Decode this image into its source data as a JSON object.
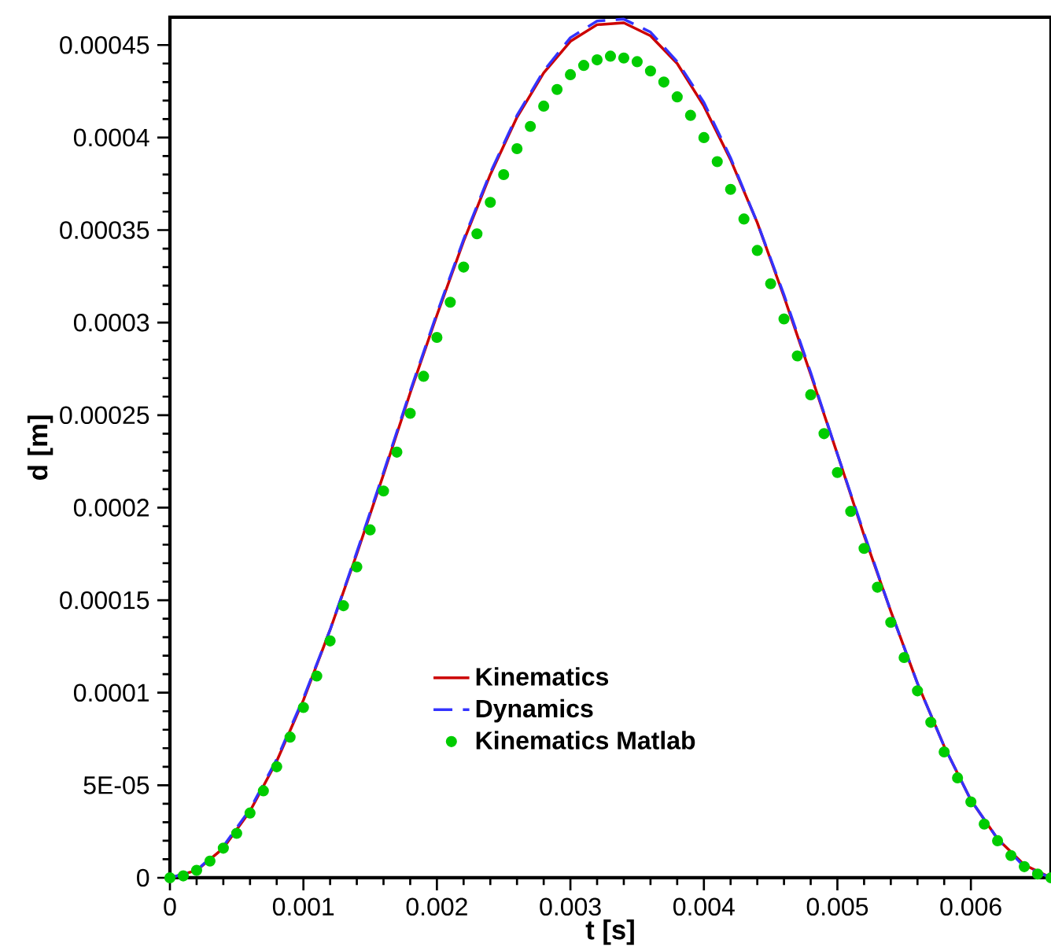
{
  "chart_data": {
    "type": "line",
    "xlabel": "t [s]",
    "ylabel": "d [m]",
    "xlim": [
      0,
      0.0066
    ],
    "ylim": [
      0,
      0.000465
    ],
    "xticks": [
      0,
      0.001,
      0.002,
      0.003,
      0.004,
      0.005,
      0.006
    ],
    "yticks": [
      0,
      {
        "value": 5e-05,
        "label": "5E-05"
      },
      0.0001,
      0.00015,
      0.0002,
      0.00025,
      0.0003,
      0.00035,
      0.0004,
      0.00045
    ],
    "grid": false,
    "legend": "bottom",
    "series": [
      {
        "name": "Kinematics",
        "color": "#cc0000",
        "line_style": "solid",
        "marker": "none",
        "x": [
          0,
          0.0002,
          0.0004,
          0.0006,
          0.0008,
          0.001,
          0.0012,
          0.0014,
          0.0016,
          0.0018,
          0.002,
          0.0022,
          0.0024,
          0.0026,
          0.0028,
          0.003,
          0.0032,
          0.0034,
          0.0036,
          0.0038,
          0.004,
          0.0042,
          0.0044,
          0.0046,
          0.0048,
          0.005,
          0.0052,
          0.0054,
          0.0056,
          0.0058,
          0.006,
          0.0062,
          0.0064,
          0.0066
        ],
        "values": [
          0,
          4e-06,
          1.6e-05,
          3.6e-05,
          6.3e-05,
          9.6e-05,
          0.000134,
          0.000175,
          0.000218,
          0.000262,
          0.000304,
          0.000344,
          0.00038,
          0.000411,
          0.000435,
          0.000452,
          0.000461,
          0.000462,
          0.000455,
          0.00044,
          0.000417,
          0.000388,
          0.000354,
          0.000314,
          0.000272,
          0.000229,
          0.000185,
          0.000144,
          0.000105,
          7.1e-05,
          4.2e-05,
          2.1e-05,
          7e-06,
          0
        ]
      },
      {
        "name": "Dynamics",
        "color": "#3333ff",
        "line_style": "dashed",
        "marker": "none",
        "x": [
          0,
          0.0002,
          0.0004,
          0.0006,
          0.0008,
          0.001,
          0.0012,
          0.0014,
          0.0016,
          0.0018,
          0.002,
          0.0022,
          0.0024,
          0.0026,
          0.0028,
          0.003,
          0.0032,
          0.0034,
          0.0036,
          0.0038,
          0.004,
          0.0042,
          0.0044,
          0.0046,
          0.0048,
          0.005,
          0.0052,
          0.0054,
          0.0056,
          0.0058,
          0.006,
          0.0062,
          0.0064,
          0.0066
        ],
        "values": [
          0,
          4e-06,
          1.7e-05,
          3.7e-05,
          6.4e-05,
          9.7e-05,
          0.000134,
          0.000176,
          0.000219,
          0.000263,
          0.000305,
          0.000345,
          0.000381,
          0.000412,
          0.000436,
          0.000454,
          0.000463,
          0.000464,
          0.000457,
          0.000441,
          0.000419,
          0.000389,
          0.000354,
          0.000315,
          0.000273,
          0.000229,
          0.000186,
          0.000144,
          0.000105,
          7.1e-05,
          4.2e-05,
          2.1e-05,
          6e-06,
          0
        ]
      },
      {
        "name": "Kinematics Matlab",
        "type": "scatter",
        "color": "#00cc00",
        "marker": "circle",
        "x": [
          0,
          0.0001,
          0.0002,
          0.0003,
          0.0004,
          0.0005,
          0.0006,
          0.0007,
          0.0008,
          0.0009,
          0.001,
          0.0011,
          0.0012,
          0.0013,
          0.0014,
          0.0015,
          0.0016,
          0.0017,
          0.0018,
          0.0019,
          0.002,
          0.0021,
          0.0022,
          0.0023,
          0.0024,
          0.0025,
          0.0026,
          0.0027,
          0.0028,
          0.0029,
          0.003,
          0.0031,
          0.0032,
          0.0033,
          0.0034,
          0.0035,
          0.0036,
          0.0037,
          0.0038,
          0.0039,
          0.004,
          0.0041,
          0.0042,
          0.0043,
          0.0044,
          0.0045,
          0.0046,
          0.0047,
          0.0048,
          0.0049,
          0.005,
          0.0051,
          0.0052,
          0.0053,
          0.0054,
          0.0055,
          0.0056,
          0.0057,
          0.0058,
          0.0059,
          0.006,
          0.0061,
          0.0062,
          0.0063,
          0.0064,
          0.0065,
          0.0066
        ],
        "values": [
          0,
          1e-06,
          4e-06,
          9e-06,
          1.6e-05,
          2.4e-05,
          3.5e-05,
          4.7e-05,
          6e-05,
          7.6e-05,
          9.2e-05,
          0.000109,
          0.000128,
          0.000147,
          0.000168,
          0.000188,
          0.000209,
          0.00023,
          0.000251,
          0.000271,
          0.000292,
          0.000311,
          0.00033,
          0.000348,
          0.000365,
          0.00038,
          0.000394,
          0.000406,
          0.000417,
          0.000426,
          0.000434,
          0.000439,
          0.000442,
          0.000444,
          0.000443,
          0.000441,
          0.000436,
          0.00043,
          0.000422,
          0.000412,
          0.0004,
          0.000387,
          0.000372,
          0.000356,
          0.000339,
          0.000321,
          0.000302,
          0.000282,
          0.000261,
          0.00024,
          0.000219,
          0.000198,
          0.000178,
          0.000157,
          0.000138,
          0.000119,
          0.000101,
          8.4e-05,
          6.8e-05,
          5.4e-05,
          4.1e-05,
          2.9e-05,
          2e-05,
          1.2e-05,
          6e-06,
          2e-06,
          0
        ]
      }
    ]
  }
}
